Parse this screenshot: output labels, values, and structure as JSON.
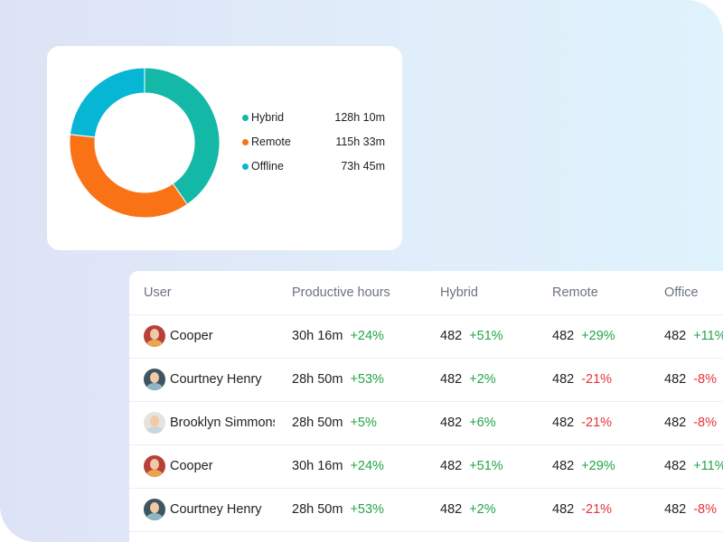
{
  "chart_data": {
    "type": "pie",
    "variant": "donut",
    "categories": [
      "Hybrid",
      "Remote",
      "Offline"
    ],
    "values_minutes": [
      7690,
      6933,
      4425
    ],
    "labels": [
      "128h 10m",
      "115h 33m",
      "73h 45m"
    ],
    "colors": [
      "#14b8a6",
      "#f97316",
      "#06b6d4"
    ],
    "legend_position": "right"
  },
  "table": {
    "columns": [
      "User",
      "Productive hours",
      "Hybrid",
      "Remote",
      "Office"
    ],
    "rows": [
      {
        "user": "Cooper",
        "avatar": "woman-red-bg",
        "productive": "30h 16m",
        "productive_change": "+24%",
        "hybrid": "482",
        "hybrid_change": "+51%",
        "remote": "482",
        "remote_change": "+29%",
        "office": "482",
        "office_change": "+11%"
      },
      {
        "user": "Courtney Henry",
        "avatar": "man-dark-bg",
        "productive": "28h 50m",
        "productive_change": "+53%",
        "hybrid": "482",
        "hybrid_change": "+2%",
        "remote": "482",
        "remote_change": "-21%",
        "office": "482",
        "office_change": "-8%"
      },
      {
        "user": "Brooklyn Simmons",
        "avatar": "man-light-bg",
        "productive": "28h 50m",
        "productive_change": "+5%",
        "hybrid": "482",
        "hybrid_change": "+6%",
        "remote": "482",
        "remote_change": "-21%",
        "office": "482",
        "office_change": "-8%"
      },
      {
        "user": "Cooper",
        "avatar": "woman-red-bg",
        "productive": "30h 16m",
        "productive_change": "+24%",
        "hybrid": "482",
        "hybrid_change": "+51%",
        "remote": "482",
        "remote_change": "+29%",
        "office": "482",
        "office_change": "+11%"
      },
      {
        "user": "Courtney Henry",
        "avatar": "man-dark-bg",
        "productive": "28h 50m",
        "productive_change": "+53%",
        "hybrid": "482",
        "hybrid_change": "+2%",
        "remote": "482",
        "remote_change": "-21%",
        "office": "482",
        "office_change": "-8%"
      }
    ]
  },
  "colors": {
    "positive": "#22a447",
    "negative": "#e5333b"
  }
}
